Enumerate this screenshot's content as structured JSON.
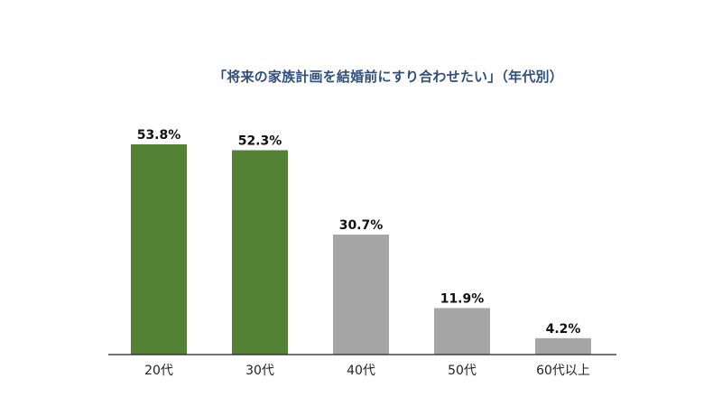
{
  "chart_data": {
    "type": "bar",
    "title": "「将来の家族計画を結婚前にすり合わせたい」（年代別）",
    "categories": [
      "20代",
      "30代",
      "40代",
      "50代",
      "60代以上"
    ],
    "values": [
      53.8,
      52.3,
      30.7,
      11.9,
      4.2
    ],
    "value_labels": [
      "53.8%",
      "52.3%",
      "30.7%",
      "11.9%",
      "4.2%"
    ],
    "bar_colors": [
      "#548235",
      "#548235",
      "#a6a6a6",
      "#a6a6a6",
      "#a6a6a6"
    ],
    "xlabel": "",
    "ylabel": "",
    "ylim": [
      0,
      65
    ],
    "grid": false
  }
}
